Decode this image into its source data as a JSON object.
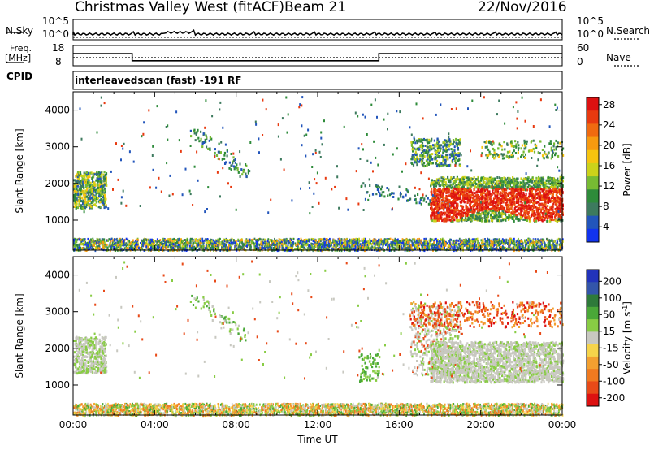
{
  "header": {
    "title": "Christmas Valley West (fitACF)",
    "beam": "Beam 21",
    "date": "22/Nov/2016"
  },
  "top_panels": {
    "nsky_label": "N.Sky",
    "nsky_ticks": [
      "10^5",
      "10^0"
    ],
    "nsearch_label": "N.Search",
    "nsearch_ticks": [
      "10^5",
      "10^0"
    ],
    "freq_label_1": "Freq.",
    "freq_label_2": "[MHz]",
    "freq_ticks": [
      "18",
      "8"
    ],
    "nave_label": "Nave",
    "nave_ticks": [
      "60",
      "0"
    ],
    "cpid_label": "CPID",
    "cpid_text": "interleavedscan (fast) -191 RF"
  },
  "chart_data": [
    {
      "type": "line",
      "panel": "frequency",
      "xlabel": "Time UT",
      "x": [
        0,
        2.9,
        2.9,
        15.0,
        15.0,
        24
      ],
      "series": [
        {
          "values": [
            14,
            14,
            10.5,
            10.5,
            14,
            14
          ]
        },
        {
          "values": [
            12,
            12,
            12,
            12,
            12,
            12
          ]
        }
      ]
    },
    {
      "type": "heatmap",
      "panel": "power",
      "ylabel": "Slant Range [km]",
      "y_ticks": [
        "1000",
        "2000",
        "3000",
        "4000"
      ],
      "ylim": [
        180,
        4500
      ],
      "colorbar_label": "Power [dB]",
      "colorbar_ticks": [
        "4",
        "8",
        "12",
        "16",
        "20",
        "24",
        "28"
      ],
      "colorbar_colors": [
        "#1133ee",
        "#2255bb",
        "#3d7a5e",
        "#2e8b3a",
        "#77bb33",
        "#ccd21a",
        "#f6c40f",
        "#f79a10",
        "#f06a10",
        "#e83a10",
        "#dd1111"
      ]
    },
    {
      "type": "heatmap",
      "panel": "velocity",
      "ylabel": "Slant Range [km]",
      "y_ticks": [
        "1000",
        "2000",
        "3000",
        "4000"
      ],
      "ylim": [
        180,
        4500
      ],
      "colorbar_label": "Velocity [m s",
      "colorbar_label_sup": "-1",
      "colorbar_label_end": "]",
      "colorbar_ticks": [
        "200",
        "100",
        "50",
        "15",
        "-15",
        "-50",
        "-100",
        "-200"
      ],
      "colorbar_colors": [
        "#2233bb",
        "#3355aa",
        "#2e7a3a",
        "#4aa838",
        "#88cc44",
        "#c8c8c0",
        "#f6d44a",
        "#f3a030",
        "#f07a20",
        "#e84a18",
        "#dd1111"
      ]
    }
  ],
  "x_axis": {
    "label": "Time UT",
    "ticks": [
      "00:00",
      "04:00",
      "08:00",
      "12:00",
      "16:00",
      "20:00",
      "00:00"
    ]
  }
}
